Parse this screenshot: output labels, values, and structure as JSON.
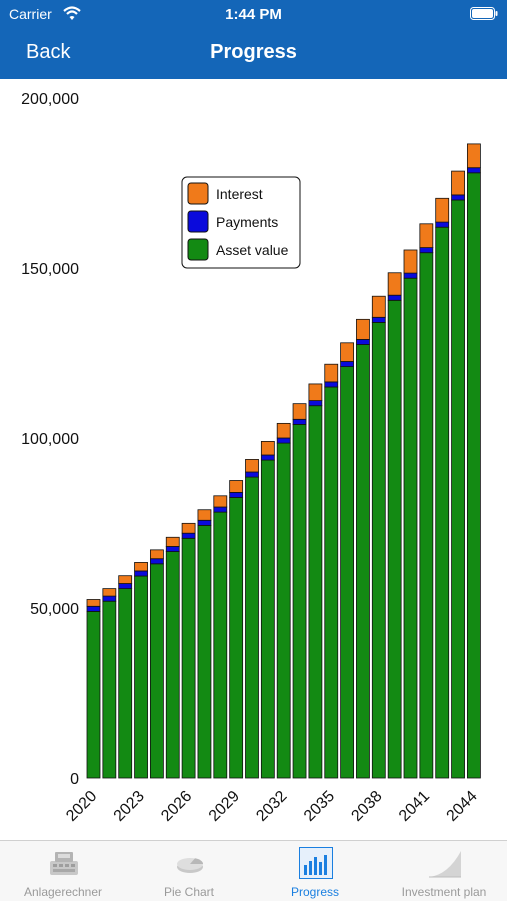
{
  "status_bar": {
    "carrier": "Carrier",
    "time": "1:44 PM"
  },
  "nav": {
    "back_label": "Back",
    "title": "Progress"
  },
  "tabs": [
    {
      "label": "Anlagerechner",
      "icon": "cash-register-icon",
      "active": false
    },
    {
      "label": "Pie Chart",
      "icon": "pie-chart-icon",
      "active": false
    },
    {
      "label": "Progress",
      "icon": "bar-chart-icon",
      "active": true
    },
    {
      "label": "Investment plan",
      "icon": "growth-curve-icon",
      "active": false
    }
  ],
  "colors": {
    "nav_bar": "#1466b8",
    "interest": "#f07a1a",
    "payments": "#0a0adc",
    "asset_value": "#138a13",
    "active_tab": "#1a7fe0"
  },
  "chart_data": {
    "type": "bar",
    "stacked": true,
    "ylim": [
      0,
      200000
    ],
    "y_ticks": [
      "0",
      "50,000",
      "100,000",
      "150,000",
      "200,000"
    ],
    "x_tick_labels": [
      "2020",
      "2023",
      "2026",
      "2029",
      "2032",
      "2035",
      "2038",
      "2041",
      "2044"
    ],
    "legend_placement": "top-left",
    "grid": false,
    "categories": [
      "2020",
      "2021",
      "2022",
      "2023",
      "2024",
      "2025",
      "2026",
      "2027",
      "2028",
      "2029",
      "2030",
      "2031",
      "2032",
      "2033",
      "2034",
      "2035",
      "2036",
      "2037",
      "2038",
      "2039",
      "2040",
      "2041",
      "2042",
      "2043",
      "2044"
    ],
    "series": [
      {
        "name": "Asset value",
        "values": [
          49000,
          52000,
          55700,
          59400,
          63000,
          66600,
          70500,
          74300,
          78200,
          82500,
          88500,
          93500,
          98500,
          104000,
          109500,
          115000,
          121000,
          127500,
          134000,
          140500,
          147000,
          154500,
          162000,
          170000,
          178000
        ]
      },
      {
        "name": "Payments",
        "values": [
          1500,
          1500,
          1500,
          1500,
          1500,
          1500,
          1500,
          1500,
          1500,
          1500,
          1500,
          1500,
          1500,
          1500,
          1500,
          1500,
          1500,
          1500,
          1500,
          1500,
          1500,
          1500,
          1500,
          1500,
          1500
        ]
      },
      {
        "name": "Interest",
        "values": [
          2000,
          2200,
          2300,
          2500,
          2600,
          2700,
          2900,
          3100,
          3300,
          3500,
          3700,
          4000,
          4300,
          4600,
          4900,
          5200,
          5500,
          5900,
          6200,
          6600,
          6800,
          7000,
          7000,
          7000,
          7000
        ]
      }
    ]
  }
}
